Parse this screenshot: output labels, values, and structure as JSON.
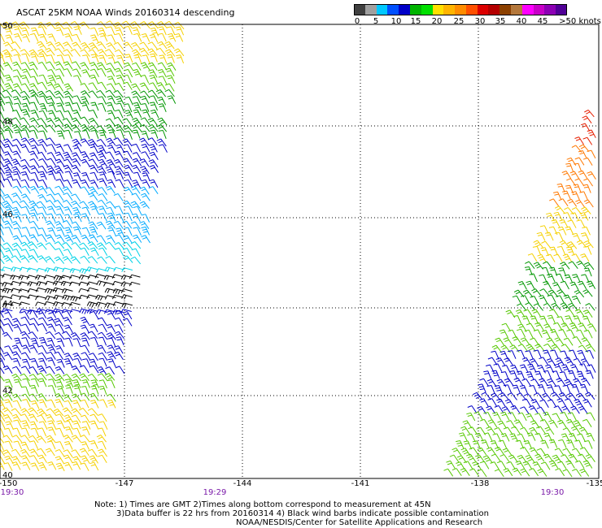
{
  "title": "ASCAT 25KM NOAA Winds 20160314 descending",
  "legend": {
    "colors": [
      "#404040",
      "#a0a0a0",
      "#00c8ff",
      "#0050ff",
      "#0000c8",
      "#00b400",
      "#00e000",
      "#ffe000",
      "#ffb400",
      "#ff8c00",
      "#ff5000",
      "#dc0000",
      "#b40000",
      "#8c4000",
      "#b4783c",
      "#ff00ff",
      "#c800c8",
      "#8c00b4",
      "#500096"
    ],
    "labels": [
      "0",
      "5",
      "10",
      "15",
      "20",
      "25",
      "30",
      "35",
      "40",
      "45",
      ">50 knots"
    ]
  },
  "map": {
    "lat_labels": [
      "50",
      "48",
      "46",
      "44",
      "42",
      "40"
    ],
    "lon_labels": [
      "-150",
      "-147",
      "-144",
      "-141",
      "-138",
      "-135"
    ],
    "time_labels": [
      "19:30",
      "19:29",
      "19:30"
    ]
  },
  "notes": [
    "Note: 1) Times are GMT 2)Times along bottom correspond to measurement at 45N",
    "3)Data buffer is 22 hrs from 20160314 4) Black wind barbs indicate possible contamination",
    "NOAA/NESDIS/Center for Satellite Applications and Research"
  ],
  "colors": {
    "yellow": "#f5d000",
    "light_green": "#55c800",
    "green": "#009600",
    "blue": "#0000c8",
    "sky_blue": "#00aaff",
    "cyan": "#00d2e6",
    "black": "#000000",
    "orange": "#ff7800",
    "red": "#e61e00",
    "time_label": "#7a1aa8"
  }
}
